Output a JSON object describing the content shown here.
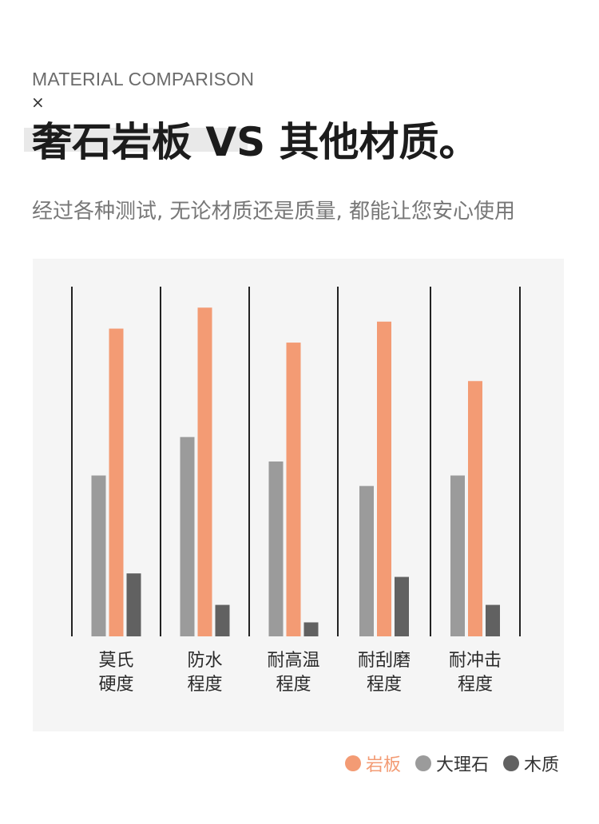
{
  "header": {
    "eyebrow": "MATERIAL COMPARISON",
    "symbol": "×",
    "title": "奢石岩板 VS 其他材质。",
    "subtitle": "经过各种测试, 无论材质还是质量, 都能让您安心使用"
  },
  "chart_data": {
    "type": "bar",
    "categories": [
      [
        "莫氏",
        "硬度"
      ],
      [
        "防水",
        "程度"
      ],
      [
        "耐高温",
        "程度"
      ],
      [
        "耐刮磨",
        "程度"
      ],
      [
        "耐冲击",
        "程度"
      ]
    ],
    "series": [
      {
        "name": "大理石",
        "color": "#9b9b9b",
        "values": [
          46,
          57,
          50,
          43,
          46
        ]
      },
      {
        "name": "岩板",
        "color": "#f39b74",
        "values": [
          88,
          94,
          84,
          90,
          73
        ]
      },
      {
        "name": "木质",
        "color": "#616161",
        "values": [
          18,
          9,
          4,
          17,
          9
        ]
      }
    ],
    "ylim": [
      0,
      100
    ],
    "grid": false,
    "legend_position": "bottom-right"
  },
  "legend": [
    {
      "label": "岩板",
      "color": "#f39b74"
    },
    {
      "label": "大理石",
      "color": "#9b9b9b"
    },
    {
      "label": "木质",
      "color": "#616161"
    }
  ]
}
